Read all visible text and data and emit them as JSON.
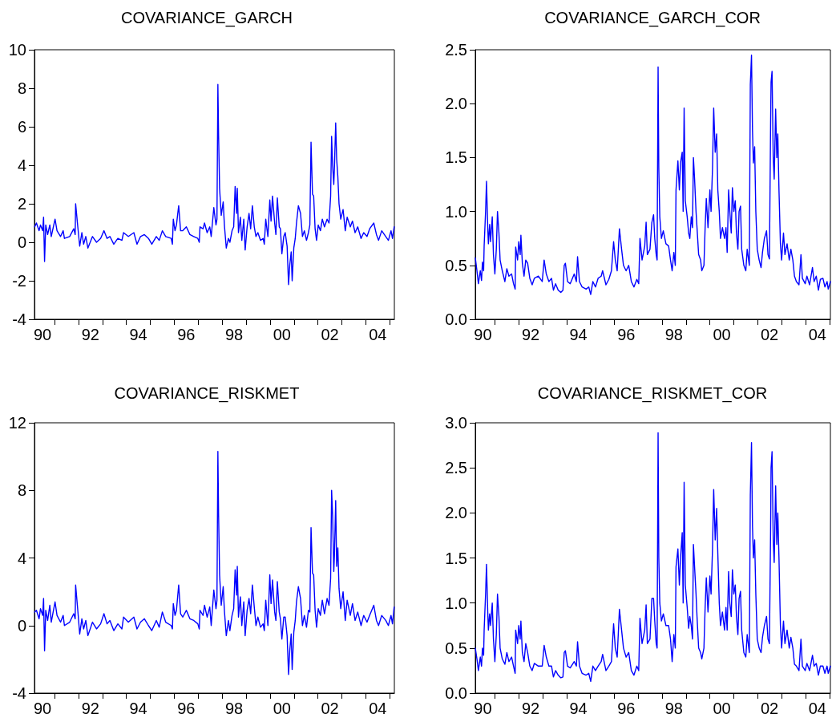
{
  "chart_data": [
    {
      "type": "line",
      "title": "COVARIANCE_GARCH",
      "x": [
        "1990-03-04",
        "1990-03-30",
        "1990-05-09",
        "1990-05-31",
        "1990-07-03",
        "1990-07-17",
        "1990-08-01",
        "1990-08-19",
        "1990-09-17",
        "1990-10-20",
        "1990-11-11",
        "1991-01-08",
        "1991-02-07",
        "1991-04-02",
        "1991-05-12",
        "1991-05-31",
        "1991-08-19",
        "1991-10-20",
        "1991-11-11",
        "1991-11-18",
        "1991-12-21",
        "1992-01-19",
        "1992-02-21",
        "1992-03-19",
        "1992-04-21",
        "1992-05-23",
        "1992-08-01",
        "1992-10-02",
        "1992-12-03",
        "1993-01-23",
        "1993-03-11",
        "1993-04-24",
        "1993-06-22",
        "1993-08-23",
        "1993-10-24",
        "1993-11-18",
        "1994-01-30",
        "1994-04-24",
        "1994-06-11",
        "1994-08-04",
        "1994-10-02",
        "1994-12-03",
        "1995-01-23",
        "1995-04-02",
        "1995-05-16",
        "1995-07-03",
        "1995-08-23",
        "1995-11-15",
        "1995-12-03",
        "1995-12-17",
        "1996-01-12",
        "1996-02-03",
        "1996-03-08",
        "1996-04-06",
        "1996-05-09",
        "1996-07-03",
        "1996-08-26",
        "1996-10-24",
        "1996-12-25",
        "1997-01-16",
        "1997-01-27",
        "1997-03-15",
        "1997-04-06",
        "1997-05-16",
        "1997-06-25",
        "1997-07-17",
        "1997-08-26",
        "1997-09-28",
        "1997-10-13",
        "1997-10-27",
        "1997-11-07",
        "1997-11-22",
        "1997-12-17",
        "1998-01-16",
        "1998-02-03",
        "1998-03-04",
        "1998-04-06",
        "1998-04-28",
        "1998-05-31",
        "1998-06-25",
        "1998-07-17",
        "1998-08-08",
        "1998-08-19",
        "1998-09-06",
        "1998-10-05",
        "1998-10-27",
        "1998-11-26",
        "1998-12-17",
        "1999-01-16",
        "1999-02-14",
        "1999-03-11",
        "1999-04-06",
        "1999-05-05",
        "1999-05-31",
        "1999-06-29",
        "1999-08-08",
        "1999-09-17",
        "1999-10-05",
        "1999-10-27",
        "1999-11-29",
        "1999-12-28",
        "2000-01-16",
        "2000-02-07",
        "2000-03-11",
        "2000-03-30",
        "2000-04-21",
        "2000-05-20",
        "2000-06-07",
        "2000-06-29",
        "2000-07-28",
        "2000-08-19",
        "2000-09-17",
        "2000-10-09",
        "2000-10-27",
        "2000-11-18",
        "2000-12-03",
        "2000-12-28",
        "2001-01-19",
        "2001-02-07",
        "2001-03-08",
        "2001-04-10",
        "2001-05-09",
        "2001-06-07",
        "2001-07-10",
        "2001-08-08",
        "2001-08-30",
        "2001-09-17",
        "2001-10-09",
        "2001-10-27",
        "2001-11-18",
        "2001-12-10",
        "2002-01-05",
        "2002-02-07",
        "2002-03-08",
        "2002-04-10",
        "2002-05-20",
        "2002-06-18",
        "2002-07-13",
        "2002-07-28",
        "2002-08-12",
        "2002-08-30",
        "2002-09-10",
        "2002-09-28",
        "2002-10-13",
        "2002-10-31",
        "2002-11-18",
        "2002-12-14",
        "2003-01-19",
        "2003-02-21",
        "2003-03-22",
        "2003-05-09",
        "2003-06-11",
        "2003-07-21",
        "2003-08-30",
        "2003-10-20",
        "2003-11-29",
        "2004-01-19",
        "2004-02-28",
        "2004-05-01",
        "2004-06-11",
        "2004-07-13",
        "2004-08-30",
        "2004-10-31",
        "2004-12-10",
        "2005-01-19",
        "2005-02-10",
        "2005-03-08"
      ],
      "series": [
        {
          "color": "#0000ff",
          "values": [
            0.8,
            1.0,
            0.6,
            0.9,
            0.6,
            1.3,
            -1.0,
            0.9,
            0.4,
            0.9,
            0.3,
            1.2,
            0.6,
            0.3,
            0.6,
            0.2,
            0.3,
            0.7,
            0.4,
            2.0,
            0.8,
            -0.2,
            0.5,
            -0.1,
            0.3,
            -0.3,
            0.3,
            0.0,
            0.2,
            0.6,
            0.2,
            0.3,
            -0.1,
            0.2,
            0.1,
            0.5,
            0.3,
            0.5,
            -0.1,
            0.3,
            0.4,
            0.2,
            -0.1,
            0.3,
            0.1,
            0.6,
            0.3,
            0.2,
            -0.1,
            1.2,
            0.6,
            0.9,
            1.9,
            0.6,
            0.6,
            0.8,
            0.4,
            0.3,
            0.2,
            0.0,
            0.8,
            0.7,
            1.0,
            0.5,
            0.8,
            0.3,
            1.8,
            0.9,
            1.2,
            8.2,
            5.5,
            2.8,
            1.4,
            2.1,
            0.9,
            -0.3,
            0.2,
            0.0,
            0.6,
            0.8,
            2.9,
            1.5,
            2.8,
            0.5,
            1.3,
            0.1,
            1.2,
            -0.4,
            0.8,
            1.5,
            0.7,
            1.9,
            0.8,
            0.3,
            0.5,
            0.1,
            0.2,
            -0.1,
            1.2,
            0.3,
            2.2,
            1.1,
            2.4,
            1.0,
            0.4,
            2.3,
            0.8,
            0.7,
            -0.6,
            0.3,
            0.5,
            -0.2,
            -2.2,
            -1.2,
            -0.5,
            -2.0,
            -0.3,
            0.2,
            1.0,
            1.9,
            1.5,
            0.3,
            0.6,
            0.1,
            0.5,
            0.9,
            5.2,
            2.5,
            2.4,
            0.7,
            0.1,
            0.9,
            0.6,
            1.2,
            0.8,
            1.2,
            1.0,
            2.4,
            5.5,
            4.0,
            3.0,
            4.0,
            6.2,
            4.3,
            3.4,
            2.0,
            1.2,
            1.7,
            0.6,
            1.3,
            0.8,
            1.1,
            0.5,
            0.8,
            0.2,
            0.5,
            0.3,
            0.7,
            1.0,
            0.4,
            0.1,
            0.6,
            0.3,
            0.1,
            0.6,
            0.2,
            0.8
          ]
        }
      ],
      "xlim": [
        "1990-02-28",
        "2005-03-11"
      ],
      "xticks": [
        {
          "value": "1990-07",
          "label": "90"
        },
        {
          "value": "1991",
          "label": null
        },
        {
          "value": "1992",
          "label": null
        },
        {
          "value": "1992-07",
          "label": "92"
        },
        {
          "value": "1993",
          "label": null
        },
        {
          "value": "1994",
          "label": null
        },
        {
          "value": "1994-07",
          "label": "94"
        },
        {
          "value": "1995",
          "label": null
        },
        {
          "value": "1996",
          "label": null
        },
        {
          "value": "1996-07",
          "label": "96"
        },
        {
          "value": "1997",
          "label": null
        },
        {
          "value": "1998",
          "label": null
        },
        {
          "value": "1998-07",
          "label": "98"
        },
        {
          "value": "1999",
          "label": null
        },
        {
          "value": "2000",
          "label": null
        },
        {
          "value": "2000-07",
          "label": "00"
        },
        {
          "value": "2001",
          "label": null
        },
        {
          "value": "2002",
          "label": null
        },
        {
          "value": "2002-07",
          "label": "02"
        },
        {
          "value": "2003",
          "label": null
        },
        {
          "value": "2004",
          "label": null
        },
        {
          "value": "2004-07",
          "label": "04"
        },
        {
          "value": "2005",
          "label": null
        }
      ],
      "ylim": [
        -4,
        10
      ],
      "yticks": [
        -4,
        -2,
        0,
        2,
        4,
        6,
        8,
        10
      ]
    },
    {
      "type": "line",
      "title": "COVARIANCE_GARCH_COR",
      "x": [
        "1990-03-08",
        "1990-04-02",
        "1990-04-24",
        "1990-05-23",
        "1990-06-11",
        "1990-06-25",
        "1990-07-13",
        "1990-07-21",
        "1990-08-12",
        "1990-08-26",
        "1990-09-14",
        "1990-09-24",
        "1990-10-13",
        "1990-10-27",
        "1990-11-22",
        "1990-12-10",
        "1991-01-01",
        "1991-01-23",
        "1991-02-10",
        "1991-03-04",
        "1991-03-22",
        "1991-04-24",
        "1991-06-03",
        "1991-07-03",
        "1991-08-04",
        "1991-09-14",
        "1991-10-13",
        "1991-11-07",
        "1991-11-15",
        "1991-12-14",
        "1992-01-01",
        "1992-01-23",
        "1992-02-03",
        "1992-02-25",
        "1992-03-22",
        "1992-04-17",
        "1992-05-16",
        "1992-06-18",
        "1992-07-24",
        "1992-08-26",
        "1992-10-27",
        "1992-12-25",
        "1993-01-23",
        "1993-02-25",
        "1993-04-06",
        "1993-05-16",
        "1993-06-14",
        "1993-07-17",
        "1993-08-26",
        "1993-10-05",
        "1993-11-07",
        "1993-11-26",
        "1993-12-14",
        "1994-01-16",
        "1994-02-25",
        "1994-04-28",
        "1994-05-31",
        "1994-06-18",
        "1994-07-17",
        "1994-08-26",
        "1994-10-27",
        "1994-12-06",
        "1995-01-05",
        "1995-02-07",
        "1995-03-19",
        "1995-04-28",
        "1995-06-14",
        "1995-07-06",
        "1995-08-26",
        "1995-10-09",
        "1995-11-18",
        "1995-12-21",
        "1996-01-16",
        "1996-02-14",
        "1996-03-19",
        "1996-04-21",
        "1996-05-20",
        "1996-06-29",
        "1996-08-08",
        "1996-09-17",
        "1996-10-27",
        "1996-12-10",
        "1997-01-08",
        "1997-01-27",
        "1997-02-28",
        "1997-04-10",
        "1997-05-01",
        "1997-05-20",
        "1997-06-29",
        "1997-07-28",
        "1997-08-23",
        "1997-09-10",
        "1997-10-02",
        "1997-10-16",
        "1997-10-31",
        "1997-11-11",
        "1997-11-26",
        "1997-12-21",
        "1998-01-19",
        "1998-02-28",
        "1998-04-10",
        "1998-05-09",
        "1998-06-03",
        "1998-06-29",
        "1998-07-21",
        "1998-08-01",
        "1998-08-30",
        "1998-09-21",
        "1998-10-09",
        "1998-11-04",
        "1998-11-18",
        "1998-12-03",
        "1998-12-21",
        "1999-01-19",
        "1999-02-10",
        "1999-02-28",
        "1999-03-22",
        "1999-04-10",
        "1999-04-24",
        "1999-05-12",
        "1999-06-03",
        "1999-06-18",
        "1999-07-13",
        "1999-08-12",
        "1999-08-30",
        "1999-10-02",
        "1999-10-20",
        "1999-11-07",
        "1999-12-03",
        "2000-01-01",
        "2000-01-19",
        "2000-02-10",
        "2000-02-28",
        "2000-03-22",
        "2000-04-13",
        "2000-05-01",
        "2000-05-23",
        "2000-06-11",
        "2000-07-10",
        "2000-08-12",
        "2000-09-03",
        "2000-09-21",
        "2000-10-13",
        "2000-10-31",
        "2000-11-22",
        "2000-12-10",
        "2001-01-01",
        "2001-01-23",
        "2001-02-10",
        "2001-03-04",
        "2001-03-22",
        "2001-04-13",
        "2001-05-01",
        "2001-06-03",
        "2001-07-03",
        "2001-07-24",
        "2001-08-26",
        "2001-09-10",
        "2001-09-28",
        "2001-10-13",
        "2001-10-27",
        "2001-11-15",
        "2001-12-03",
        "2001-12-25",
        "2002-01-23",
        "2002-02-21",
        "2002-03-15",
        "2002-04-13",
        "2002-05-16",
        "2002-06-07",
        "2002-06-29",
        "2002-07-17",
        "2002-07-24",
        "2002-08-08",
        "2002-08-26",
        "2002-09-10",
        "2002-10-02",
        "2002-10-20",
        "2002-11-04",
        "2002-11-22",
        "2002-12-14",
        "2003-01-01",
        "2003-01-30",
        "2003-02-21",
        "2003-03-26",
        "2003-04-28",
        "2003-05-23",
        "2003-06-22",
        "2003-07-17",
        "2003-08-15",
        "2003-09-24",
        "2003-10-24",
        "2003-11-15",
        "2003-12-28",
        "2004-01-23",
        "2004-03-04",
        "2004-04-17",
        "2004-05-12",
        "2004-06-14",
        "2004-07-17",
        "2004-08-15",
        "2004-09-24",
        "2004-10-24",
        "2004-11-26",
        "2004-12-14",
        "2005-01-16"
      ],
      "series": [
        {
          "color": "#0000ff",
          "values": [
            0.57,
            0.45,
            0.33,
            0.45,
            0.36,
            0.53,
            0.45,
            0.68,
            1.0,
            1.28,
            0.85,
            0.7,
            0.88,
            0.72,
            0.95,
            0.6,
            0.42,
            0.65,
            1.0,
            0.8,
            0.55,
            0.45,
            0.35,
            0.47,
            0.4,
            0.42,
            0.33,
            0.28,
            0.67,
            0.55,
            0.72,
            0.6,
            0.78,
            0.52,
            0.4,
            0.55,
            0.52,
            0.38,
            0.32,
            0.38,
            0.4,
            0.35,
            0.55,
            0.42,
            0.35,
            0.38,
            0.27,
            0.33,
            0.27,
            0.25,
            0.27,
            0.5,
            0.52,
            0.35,
            0.33,
            0.42,
            0.35,
            0.58,
            0.35,
            0.3,
            0.28,
            0.3,
            0.23,
            0.35,
            0.3,
            0.38,
            0.4,
            0.45,
            0.32,
            0.37,
            0.45,
            0.72,
            0.55,
            0.45,
            0.84,
            0.65,
            0.5,
            0.45,
            0.5,
            0.35,
            0.3,
            0.37,
            0.33,
            0.75,
            0.55,
            0.68,
            0.9,
            0.6,
            0.65,
            0.9,
            0.97,
            0.75,
            0.6,
            0.55,
            2.34,
            1.4,
            0.95,
            0.75,
            0.82,
            0.7,
            0.68,
            0.55,
            0.45,
            0.62,
            0.5,
            1.2,
            1.47,
            1.2,
            1.45,
            1.55,
            1.0,
            1.96,
            1.1,
            0.95,
            0.8,
            0.75,
            0.95,
            0.85,
            1.5,
            1.3,
            1.0,
            0.85,
            0.6,
            0.55,
            0.45,
            0.5,
            0.85,
            1.12,
            0.85,
            1.2,
            1.0,
            1.4,
            1.96,
            1.55,
            1.72,
            1.2,
            1.0,
            0.75,
            0.85,
            0.75,
            0.85,
            0.62,
            1.2,
            1.0,
            0.8,
            1.22,
            1.0,
            1.1,
            0.8,
            0.65,
            1.0,
            1.05,
            0.65,
            0.5,
            0.45,
            0.65,
            0.5,
            2.18,
            2.45,
            1.75,
            1.45,
            1.6,
            1.0,
            0.65,
            0.55,
            0.48,
            0.62,
            0.75,
            0.82,
            0.6,
            0.56,
            1.8,
            2.2,
            2.3,
            1.5,
            1.3,
            1.95,
            1.5,
            1.72,
            1.2,
            0.7,
            0.55,
            0.8,
            0.6,
            0.7,
            0.55,
            0.65,
            0.55,
            0.4,
            0.35,
            0.32,
            0.6,
            0.38,
            0.33,
            0.4,
            0.32,
            0.48,
            0.35,
            0.4,
            0.27,
            0.37,
            0.38,
            0.3,
            0.35,
            0.28,
            0.35
          ]
        }
      ],
      "xlim": [
        "1990-03-08",
        "2005-01-16"
      ],
      "xticks": [
        {
          "value": "1990-07",
          "label": "90"
        },
        {
          "value": "1991",
          "label": null
        },
        {
          "value": "1992",
          "label": null
        },
        {
          "value": "1992-07",
          "label": "92"
        },
        {
          "value": "1993",
          "label": null
        },
        {
          "value": "1994",
          "label": null
        },
        {
          "value": "1994-07",
          "label": "94"
        },
        {
          "value": "1995",
          "label": null
        },
        {
          "value": "1996",
          "label": null
        },
        {
          "value": "1996-07",
          "label": "96"
        },
        {
          "value": "1997",
          "label": null
        },
        {
          "value": "1998",
          "label": null
        },
        {
          "value": "1998-07",
          "label": "98"
        },
        {
          "value": "1999",
          "label": null
        },
        {
          "value": "2000",
          "label": null
        },
        {
          "value": "2000-07",
          "label": "00"
        },
        {
          "value": "2001",
          "label": null
        },
        {
          "value": "2002",
          "label": null
        },
        {
          "value": "2002-07",
          "label": "02"
        },
        {
          "value": "2003",
          "label": null
        },
        {
          "value": "2004",
          "label": null
        },
        {
          "value": "2004-07",
          "label": "04"
        },
        {
          "value": "2005",
          "label": null
        }
      ],
      "ylim": [
        0,
        2.5
      ],
      "yticks": [
        {
          "value": 0,
          "label": "0.0"
        },
        0.5,
        {
          "value": 1,
          "label": "1.0"
        },
        1.5,
        {
          "value": 2,
          "label": "2.0"
        },
        2.5
      ]
    },
    {
      "type": "line",
      "title": "COVARIANCE_RISKMET",
      "x": [
        "1990-03-04",
        "1990-03-30",
        "1990-05-09",
        "1990-05-31",
        "1990-07-03",
        "1990-07-17",
        "1990-08-01",
        "1990-08-19",
        "1990-09-17",
        "1990-10-20",
        "1990-11-11",
        "1991-01-08",
        "1991-02-07",
        "1991-04-02",
        "1991-05-12",
        "1991-05-31",
        "1991-08-19",
        "1991-10-20",
        "1991-11-11",
        "1991-11-18",
        "1991-12-21",
        "1992-01-19",
        "1992-02-21",
        "1992-03-19",
        "1992-04-21",
        "1992-05-23",
        "1992-08-01",
        "1992-10-02",
        "1992-12-03",
        "1993-01-23",
        "1993-03-11",
        "1993-04-24",
        "1993-06-22",
        "1993-08-23",
        "1993-10-24",
        "1993-11-18",
        "1994-01-30",
        "1994-04-24",
        "1994-06-11",
        "1994-08-04",
        "1994-10-02",
        "1994-12-03",
        "1995-01-23",
        "1995-04-02",
        "1995-05-16",
        "1995-07-03",
        "1995-08-23",
        "1995-11-15",
        "1995-12-03",
        "1995-12-17",
        "1996-01-12",
        "1996-02-03",
        "1996-03-08",
        "1996-04-06",
        "1996-05-09",
        "1996-07-03",
        "1996-08-26",
        "1996-10-24",
        "1996-12-25",
        "1997-01-16",
        "1997-01-27",
        "1997-03-15",
        "1997-04-06",
        "1997-05-16",
        "1997-06-25",
        "1997-07-17",
        "1997-08-26",
        "1997-09-28",
        "1997-10-13",
        "1997-10-27",
        "1997-11-07",
        "1997-11-22",
        "1997-12-17",
        "1998-01-16",
        "1998-02-03",
        "1998-03-04",
        "1998-04-06",
        "1998-04-28",
        "1998-05-31",
        "1998-06-25",
        "1998-07-17",
        "1998-08-08",
        "1998-08-19",
        "1998-09-06",
        "1998-10-05",
        "1998-10-27",
        "1998-11-26",
        "1998-12-17",
        "1999-01-16",
        "1999-02-14",
        "1999-03-11",
        "1999-04-06",
        "1999-05-05",
        "1999-05-31",
        "1999-06-29",
        "1999-08-08",
        "1999-09-17",
        "1999-10-05",
        "1999-10-27",
        "1999-11-29",
        "1999-12-28",
        "2000-01-16",
        "2000-02-07",
        "2000-03-11",
        "2000-03-30",
        "2000-04-21",
        "2000-05-20",
        "2000-06-07",
        "2000-06-29",
        "2000-07-28",
        "2000-08-19",
        "2000-09-17",
        "2000-10-09",
        "2000-10-27",
        "2000-11-18",
        "2000-12-03",
        "2000-12-28",
        "2001-01-19",
        "2001-02-07",
        "2001-03-08",
        "2001-04-10",
        "2001-05-09",
        "2001-06-07",
        "2001-07-10",
        "2001-08-08",
        "2001-08-30",
        "2001-09-17",
        "2001-10-09",
        "2001-10-27",
        "2001-11-18",
        "2001-12-10",
        "2002-01-05",
        "2002-02-07",
        "2002-03-08",
        "2002-04-10",
        "2002-05-20",
        "2002-06-18",
        "2002-07-13",
        "2002-07-28",
        "2002-08-12",
        "2002-08-30",
        "2002-09-10",
        "2002-09-28",
        "2002-10-13",
        "2002-10-31",
        "2002-11-18",
        "2002-12-14",
        "2003-01-19",
        "2003-02-21",
        "2003-03-22",
        "2003-05-09",
        "2003-06-11",
        "2003-07-21",
        "2003-08-30",
        "2003-10-20",
        "2003-11-29",
        "2004-01-19",
        "2004-02-28",
        "2004-05-01",
        "2004-06-11",
        "2004-07-13",
        "2004-08-30",
        "2004-10-31",
        "2004-12-10",
        "2005-01-19",
        "2005-02-10",
        "2005-03-08"
      ],
      "series": [
        {
          "color": "#0000ff",
          "values": [
            0.8,
            0.9,
            0.4,
            1.0,
            0.6,
            1.6,
            -1.5,
            0.9,
            0.3,
            1.2,
            0.2,
            1.4,
            0.6,
            0.2,
            0.6,
            0.0,
            0.2,
            0.7,
            0.4,
            2.4,
            0.9,
            -0.5,
            0.4,
            -0.2,
            0.3,
            -0.6,
            0.2,
            -0.2,
            0.1,
            0.7,
            0.1,
            0.3,
            -0.3,
            0.1,
            -0.2,
            0.5,
            0.2,
            0.5,
            -0.2,
            0.2,
            0.4,
            0.0,
            -0.3,
            0.3,
            -0.1,
            0.8,
            0.2,
            0.0,
            -0.2,
            1.3,
            0.6,
            0.9,
            2.4,
            0.7,
            0.5,
            0.9,
            0.4,
            0.3,
            0.1,
            -0.2,
            0.9,
            0.6,
            1.2,
            0.5,
            1.1,
            0.0,
            2.1,
            1.0,
            1.5,
            10.3,
            6.5,
            3.0,
            1.2,
            2.3,
            0.9,
            -0.6,
            0.3,
            -0.3,
            0.6,
            1.0,
            3.3,
            1.8,
            3.5,
            0.5,
            1.7,
            0.0,
            1.4,
            -0.6,
            0.9,
            1.6,
            0.7,
            2.4,
            1.1,
            0.0,
            0.5,
            -0.1,
            0.1,
            -0.3,
            1.5,
            0.0,
            3.0,
            1.3,
            2.7,
            0.8,
            0.3,
            2.6,
            0.8,
            0.4,
            -0.8,
            0.5,
            0.5,
            -0.6,
            -2.9,
            -1.5,
            -0.5,
            -2.6,
            -0.4,
            0.3,
            1.4,
            2.3,
            1.6,
            0.0,
            0.6,
            -0.1,
            0.9,
            0.8,
            5.8,
            3.1,
            3.0,
            0.9,
            -0.1,
            1.0,
            0.6,
            1.5,
            0.7,
            1.6,
            1.2,
            2.8,
            8.0,
            6.5,
            3.2,
            4.3,
            7.4,
            3.5,
            4.6,
            2.2,
            1.0,
            2.0,
            0.3,
            1.5,
            0.6,
            1.3,
            0.3,
            0.8,
            0.0,
            0.6,
            0.2,
            0.6,
            1.2,
            0.3,
            0.0,
            0.6,
            0.3,
            0.0,
            0.6,
            0.1,
            1.1
          ]
        }
      ],
      "xlim": [
        "1990-02-28",
        "2005-03-11"
      ],
      "xticks": [
        {
          "value": "1990-07",
          "label": "90"
        },
        {
          "value": "1991",
          "label": null
        },
        {
          "value": "1992",
          "label": null
        },
        {
          "value": "1992-07",
          "label": "92"
        },
        {
          "value": "1993",
          "label": null
        },
        {
          "value": "1994",
          "label": null
        },
        {
          "value": "1994-07",
          "label": "94"
        },
        {
          "value": "1995",
          "label": null
        },
        {
          "value": "1996",
          "label": null
        },
        {
          "value": "1996-07",
          "label": "96"
        },
        {
          "value": "1997",
          "label": null
        },
        {
          "value": "1998",
          "label": null
        },
        {
          "value": "1998-07",
          "label": "98"
        },
        {
          "value": "1999",
          "label": null
        },
        {
          "value": "2000",
          "label": null
        },
        {
          "value": "2000-07",
          "label": "00"
        },
        {
          "value": "2001",
          "label": null
        },
        {
          "value": "2002",
          "label": null
        },
        {
          "value": "2002-07",
          "label": "02"
        },
        {
          "value": "2003",
          "label": null
        },
        {
          "value": "2004",
          "label": null
        },
        {
          "value": "2004-07",
          "label": "04"
        },
        {
          "value": "2005",
          "label": null
        }
      ],
      "ylim": [
        -4,
        12
      ],
      "yticks": [
        -4,
        0,
        4,
        8,
        12
      ]
    },
    {
      "type": "line",
      "title": "COVARIANCE_RISKMET_COR",
      "x": [
        "1990-03-08",
        "1990-04-02",
        "1990-04-24",
        "1990-05-23",
        "1990-06-11",
        "1990-06-25",
        "1990-07-13",
        "1990-07-21",
        "1990-08-12",
        "1990-08-26",
        "1990-09-14",
        "1990-09-24",
        "1990-10-13",
        "1990-10-27",
        "1990-11-22",
        "1990-12-10",
        "1991-01-01",
        "1991-01-23",
        "1991-02-10",
        "1991-03-04",
        "1991-03-22",
        "1991-04-24",
        "1991-06-03",
        "1991-07-03",
        "1991-08-04",
        "1991-09-14",
        "1991-10-13",
        "1991-11-07",
        "1991-11-15",
        "1991-12-14",
        "1992-01-01",
        "1992-01-23",
        "1992-02-03",
        "1992-02-25",
        "1992-03-22",
        "1992-04-17",
        "1992-05-16",
        "1992-06-18",
        "1992-07-24",
        "1992-08-26",
        "1992-10-27",
        "1992-12-25",
        "1993-01-23",
        "1993-02-25",
        "1993-04-06",
        "1993-05-16",
        "1993-06-14",
        "1993-07-17",
        "1993-08-26",
        "1993-10-05",
        "1993-11-07",
        "1993-11-26",
        "1993-12-14",
        "1994-01-16",
        "1994-02-25",
        "1994-04-28",
        "1994-05-31",
        "1994-06-18",
        "1994-07-17",
        "1994-08-26",
        "1994-10-27",
        "1994-12-06",
        "1995-01-05",
        "1995-02-07",
        "1995-03-19",
        "1995-04-28",
        "1995-06-14",
        "1995-07-06",
        "1995-08-26",
        "1995-10-09",
        "1995-11-18",
        "1995-12-21",
        "1996-01-16",
        "1996-02-14",
        "1996-03-19",
        "1996-04-21",
        "1996-05-20",
        "1996-06-29",
        "1996-08-08",
        "1996-09-17",
        "1996-10-27",
        "1996-12-10",
        "1997-01-08",
        "1997-01-27",
        "1997-02-28",
        "1997-04-10",
        "1997-05-01",
        "1997-05-20",
        "1997-06-29",
        "1997-07-28",
        "1997-08-23",
        "1997-09-10",
        "1997-10-02",
        "1997-10-16",
        "1997-10-31",
        "1997-11-11",
        "1997-11-26",
        "1997-12-21",
        "1998-01-19",
        "1998-02-28",
        "1998-04-10",
        "1998-05-09",
        "1998-06-03",
        "1998-06-29",
        "1998-07-21",
        "1998-08-01",
        "1998-08-30",
        "1998-09-21",
        "1998-10-09",
        "1998-11-04",
        "1998-11-18",
        "1998-12-03",
        "1998-12-21",
        "1999-01-19",
        "1999-02-10",
        "1999-02-28",
        "1999-03-22",
        "1999-04-10",
        "1999-04-24",
        "1999-05-12",
        "1999-06-03",
        "1999-06-18",
        "1999-07-13",
        "1999-08-12",
        "1999-08-30",
        "1999-10-02",
        "1999-10-20",
        "1999-11-07",
        "1999-12-03",
        "2000-01-01",
        "2000-01-19",
        "2000-02-10",
        "2000-02-28",
        "2000-03-22",
        "2000-04-13",
        "2000-05-01",
        "2000-05-23",
        "2000-06-11",
        "2000-07-10",
        "2000-08-12",
        "2000-09-03",
        "2000-09-21",
        "2000-10-13",
        "2000-10-31",
        "2000-11-22",
        "2000-12-10",
        "2001-01-01",
        "2001-01-23",
        "2001-02-10",
        "2001-03-04",
        "2001-03-22",
        "2001-04-13",
        "2001-05-01",
        "2001-06-03",
        "2001-07-03",
        "2001-07-24",
        "2001-08-26",
        "2001-09-10",
        "2001-09-28",
        "2001-10-13",
        "2001-10-27",
        "2001-11-15",
        "2001-12-03",
        "2001-12-25",
        "2002-01-23",
        "2002-02-21",
        "2002-03-15",
        "2002-04-13",
        "2002-05-16",
        "2002-06-07",
        "2002-06-29",
        "2002-07-17",
        "2002-07-24",
        "2002-08-08",
        "2002-08-26",
        "2002-09-10",
        "2002-10-02",
        "2002-10-20",
        "2002-11-04",
        "2002-11-22",
        "2002-12-14",
        "2003-01-01",
        "2003-01-30",
        "2003-02-21",
        "2003-03-26",
        "2003-04-28",
        "2003-05-23",
        "2003-06-22",
        "2003-07-17",
        "2003-08-15",
        "2003-09-24",
        "2003-10-24",
        "2003-11-15",
        "2003-12-28",
        "2004-01-23",
        "2004-03-04",
        "2004-04-17",
        "2004-05-12",
        "2004-06-14",
        "2004-07-17",
        "2004-08-15",
        "2004-09-24",
        "2004-10-24",
        "2004-11-26",
        "2004-12-14",
        "2005-01-16"
      ],
      "series": [
        {
          "color": "#0000ff",
          "values": [
            0.5,
            0.38,
            0.25,
            0.4,
            0.3,
            0.5,
            0.42,
            0.7,
            1.1,
            1.43,
            0.9,
            0.7,
            0.88,
            0.75,
            1.0,
            0.6,
            0.35,
            0.65,
            1.1,
            0.85,
            0.5,
            0.38,
            0.32,
            0.45,
            0.35,
            0.4,
            0.3,
            0.22,
            0.7,
            0.55,
            0.75,
            0.6,
            0.8,
            0.45,
            0.35,
            0.55,
            0.45,
            0.3,
            0.25,
            0.33,
            0.3,
            0.3,
            0.53,
            0.4,
            0.3,
            0.3,
            0.18,
            0.25,
            0.2,
            0.17,
            0.18,
            0.45,
            0.47,
            0.3,
            0.28,
            0.35,
            0.3,
            0.57,
            0.3,
            0.22,
            0.2,
            0.22,
            0.13,
            0.3,
            0.25,
            0.3,
            0.35,
            0.43,
            0.25,
            0.3,
            0.35,
            0.77,
            0.5,
            0.4,
            0.93,
            0.7,
            0.5,
            0.4,
            0.45,
            0.25,
            0.2,
            0.3,
            0.25,
            0.83,
            0.55,
            0.7,
            0.98,
            0.55,
            0.6,
            1.05,
            1.05,
            0.8,
            0.55,
            0.5,
            2.89,
            1.5,
            1.0,
            0.8,
            0.88,
            0.75,
            0.75,
            0.6,
            0.35,
            0.65,
            0.5,
            1.4,
            1.6,
            1.2,
            1.5,
            1.78,
            1.0,
            2.34,
            1.2,
            0.95,
            0.72,
            0.85,
            0.75,
            0.6,
            1.65,
            1.4,
            1.1,
            0.85,
            0.5,
            0.45,
            0.38,
            0.5,
            0.95,
            1.28,
            0.9,
            1.3,
            1.1,
            1.6,
            2.26,
            1.7,
            2.05,
            1.55,
            1.0,
            0.75,
            0.9,
            0.7,
            0.95,
            0.7,
            1.35,
            1.0,
            0.85,
            1.37,
            1.1,
            1.2,
            0.85,
            0.65,
            1.05,
            1.13,
            0.7,
            0.45,
            0.4,
            0.65,
            0.45,
            2.2,
            2.78,
            1.85,
            1.5,
            1.7,
            1.1,
            0.6,
            0.5,
            0.45,
            0.62,
            0.75,
            0.85,
            0.6,
            0.55,
            1.8,
            2.5,
            2.68,
            1.7,
            1.45,
            2.3,
            1.65,
            2.0,
            1.5,
            0.75,
            0.5,
            0.8,
            0.55,
            0.7,
            0.5,
            0.62,
            0.5,
            0.32,
            0.3,
            0.25,
            0.6,
            0.3,
            0.25,
            0.33,
            0.25,
            0.42,
            0.3,
            0.33,
            0.2,
            0.3,
            0.3,
            0.22,
            0.3,
            0.22,
            0.3
          ]
        }
      ],
      "xlim": [
        "1990-03-08",
        "2005-01-16"
      ],
      "xticks": [
        {
          "value": "1990-07",
          "label": "90"
        },
        {
          "value": "1991",
          "label": null
        },
        {
          "value": "1992",
          "label": null
        },
        {
          "value": "1992-07",
          "label": "92"
        },
        {
          "value": "1993",
          "label": null
        },
        {
          "value": "1994",
          "label": null
        },
        {
          "value": "1994-07",
          "label": "94"
        },
        {
          "value": "1995",
          "label": null
        },
        {
          "value": "1996",
          "label": null
        },
        {
          "value": "1996-07",
          "label": "96"
        },
        {
          "value": "1997",
          "label": null
        },
        {
          "value": "1998",
          "label": null
        },
        {
          "value": "1998-07",
          "label": "98"
        },
        {
          "value": "1999",
          "label": null
        },
        {
          "value": "2000",
          "label": null
        },
        {
          "value": "2000-07",
          "label": "00"
        },
        {
          "value": "2001",
          "label": null
        },
        {
          "value": "2002",
          "label": null
        },
        {
          "value": "2002-07",
          "label": "02"
        },
        {
          "value": "2003",
          "label": null
        },
        {
          "value": "2004",
          "label": null
        },
        {
          "value": "2004-07",
          "label": "04"
        },
        {
          "value": "2005",
          "label": null
        }
      ],
      "ylim": [
        0,
        3
      ],
      "yticks": [
        {
          "value": 0,
          "label": "0.0"
        },
        0.5,
        {
          "value": 1,
          "label": "1.0"
        },
        1.5,
        {
          "value": 2,
          "label": "2.0"
        },
        2.5,
        {
          "value": 3,
          "label": "3.0"
        }
      ]
    }
  ]
}
